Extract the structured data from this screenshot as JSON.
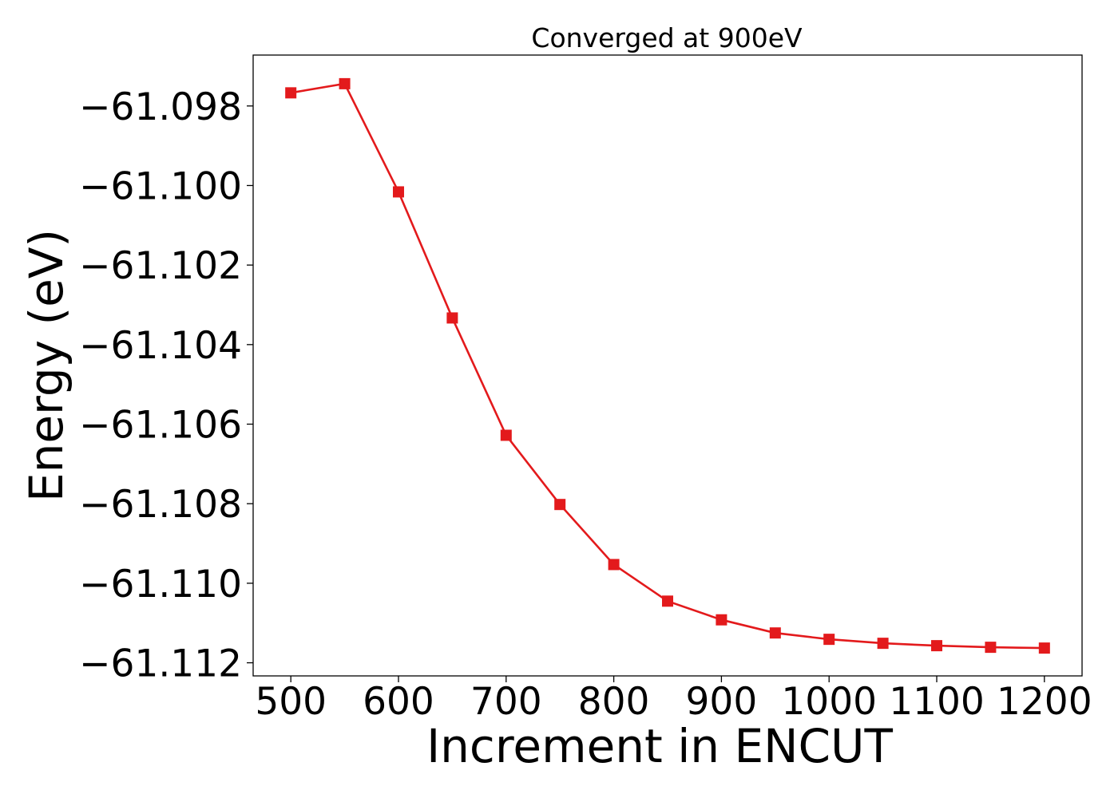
{
  "chart_data": {
    "type": "line",
    "title": "Converged at 900eV",
    "xlabel": "Increment in ENCUT",
    "ylabel": "Energy (eV)",
    "x": [
      500,
      550,
      600,
      650,
      700,
      750,
      800,
      850,
      900,
      950,
      1000,
      1050,
      1100,
      1150,
      1200
    ],
    "series": [
      {
        "values": [
          -61.09767,
          -61.09744,
          -61.10016,
          -61.10333,
          -61.10628,
          -61.10802,
          -61.10953,
          -61.11045,
          -61.11092,
          -61.11125,
          -61.11141,
          -61.11151,
          -61.11157,
          -61.11161,
          -61.11163
        ],
        "color": "#e31a1c",
        "marker": "square"
      }
    ],
    "xlim": [
      465,
      1235
    ],
    "ylim": [
      -61.11233,
      -61.09672
    ],
    "xticks": [
      500,
      600,
      700,
      800,
      900,
      1000,
      1100,
      1200
    ],
    "xtick_labels": [
      "500",
      "600",
      "700",
      "800",
      "900",
      "1000",
      "1100",
      "1200"
    ],
    "yticks": [
      -61.098,
      -61.1,
      -61.102,
      -61.104,
      -61.106,
      -61.108,
      -61.11,
      -61.112
    ],
    "ytick_labels": [
      "−61.098",
      "−61.100",
      "−61.102",
      "−61.104",
      "−61.106",
      "−61.108",
      "−61.110",
      "−61.112"
    ],
    "grid": false,
    "legend": false
  }
}
